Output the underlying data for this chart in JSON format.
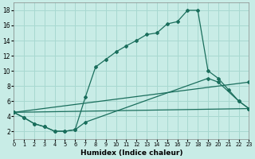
{
  "xlabel": "Humidex (Indice chaleur)",
  "xlim": [
    0,
    23
  ],
  "ylim": [
    1,
    19
  ],
  "xticks": [
    0,
    1,
    2,
    3,
    4,
    5,
    6,
    7,
    8,
    9,
    10,
    11,
    12,
    13,
    14,
    15,
    16,
    17,
    18,
    19,
    20,
    21,
    22,
    23
  ],
  "yticks": [
    2,
    4,
    6,
    8,
    10,
    12,
    14,
    16,
    18
  ],
  "bg_color": "#c8ece6",
  "grid_color": "#a8d8d0",
  "line_color": "#1a6e5c",
  "curve1_x": [
    0,
    1,
    2,
    3,
    4,
    5,
    6,
    7,
    8,
    9,
    10,
    11,
    12,
    13,
    14,
    15,
    16,
    17,
    18,
    19,
    20,
    21,
    22,
    23
  ],
  "curve1_y": [
    4.5,
    3.8,
    3.0,
    2.6,
    2.0,
    2.0,
    2.2,
    6.5,
    10.5,
    11.5,
    12.5,
    13.3,
    14.0,
    14.8,
    15.0,
    16.2,
    16.5,
    18.0,
    18.0,
    10.0,
    9.0,
    7.5,
    6.0,
    5.0
  ],
  "curve2_x": [
    0,
    1,
    2,
    3,
    4,
    5,
    6,
    7,
    19,
    20,
    22,
    23
  ],
  "curve2_y": [
    4.5,
    3.8,
    3.0,
    2.6,
    2.0,
    2.0,
    2.2,
    3.2,
    9.0,
    8.5,
    6.0,
    5.0
  ],
  "curve3_x": [
    0,
    23
  ],
  "curve3_y": [
    4.5,
    8.5
  ],
  "curve4_x": [
    0,
    23
  ],
  "curve4_y": [
    4.5,
    5.0
  ]
}
